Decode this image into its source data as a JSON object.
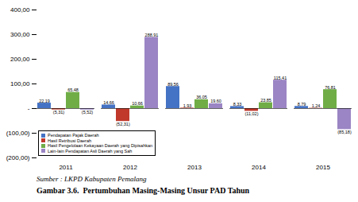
{
  "chart_data": {
    "type": "bar",
    "title": "Gambar 3.6.  Pertumbuhan Masing-Masing Unsur PAD Tahun",
    "annotations": [
      "Sumber : LKPD Kabupaten Pemalang"
    ],
    "categories": [
      "2011",
      "2012",
      "2013",
      "2014",
      "2015"
    ],
    "series": [
      {
        "name": "Pendapatan Pajak Daerah",
        "color": "#4472C4",
        "values": [
          22.19,
          14.66,
          89.56,
          8.33,
          8.79
        ],
        "value_labels": [
          "22,19",
          "14,66",
          "89,56",
          "8,33",
          "8,79"
        ]
      },
      {
        "name": "Hasil Retribusi Daerah",
        "color": "#C0392B",
        "values": [
          -5.31,
          -52.31,
          1.93,
          -11.02,
          1.24
        ],
        "value_labels": [
          "(5,31)",
          "(52,31)",
          "1,93",
          "(11,02)",
          "1,24"
        ]
      },
      {
        "name": "Hasil Pengelolaan Kekayaan Daerah yang Dipisahkan",
        "color": "#70AD47",
        "values": [
          65.48,
          10.66,
          36.05,
          23.85,
          76.81
        ],
        "value_labels": [
          "65,48",
          "10,66",
          "36,05",
          "23,85",
          "76,81"
        ]
      },
      {
        "name": "Lain-lain Pendapatan Asli Daerah yang Sah",
        "color": "#9B85C4",
        "values": [
          -5.52,
          288.91,
          19.6,
          115.41,
          -85.18
        ],
        "value_labels": [
          "(5,52)",
          "288,91",
          "19,60",
          "115,41",
          "(85,18)"
        ]
      }
    ],
    "ylim": [
      -200,
      400
    ],
    "yticks": [
      {
        "value": -200,
        "label": "(200,00)"
      },
      {
        "value": -100,
        "label": "(100,00)"
      },
      {
        "value": 0,
        "label": "-"
      },
      {
        "value": 100,
        "label": "100,00"
      },
      {
        "value": 200,
        "label": "200,00"
      },
      {
        "value": 300,
        "label": "300,00"
      },
      {
        "value": 400,
        "label": "400,00"
      }
    ],
    "data_labels": true,
    "legend": "lower left",
    "grid": false
  }
}
